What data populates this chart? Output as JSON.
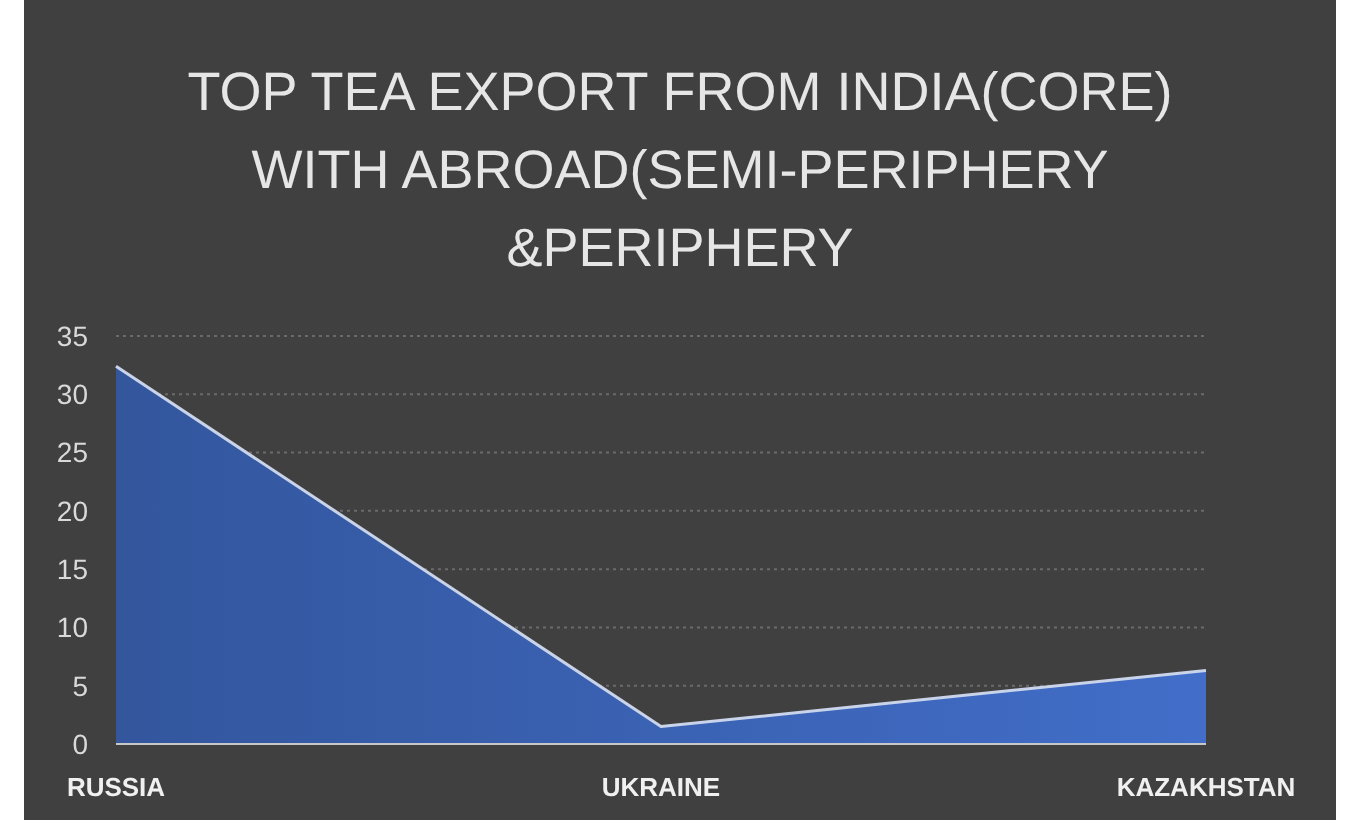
{
  "chart_data": {
    "type": "area",
    "title": "TOP TEA EXPORT FROM INDIA(CORE)\nWITH ABROAD(SEMI-PERIPHERY\n&PERIPHERY",
    "categories": [
      "RUSSIA",
      "UKRAINE",
      "KAZAKHSTAN"
    ],
    "series": [
      {
        "color": "#3b63b5",
        "values": [
          32.4,
          1.5,
          6.3
        ]
      }
    ],
    "ylim": [
      0,
      35
    ],
    "yticks": [
      0,
      5,
      10,
      15,
      20,
      25,
      30,
      35
    ],
    "grid": "y",
    "legend": false
  }
}
